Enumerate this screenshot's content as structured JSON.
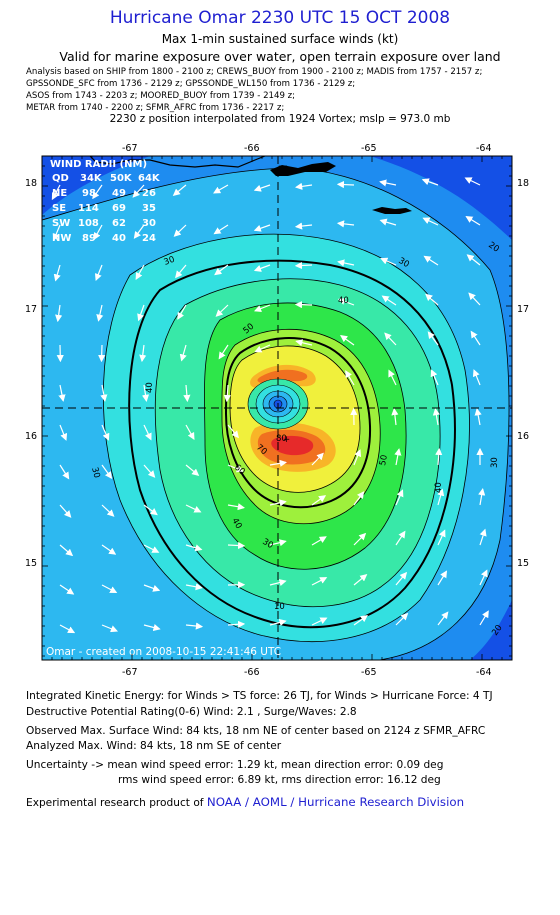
{
  "header": {
    "title": "Hurricane Omar 2230 UTC 15 OCT 2008",
    "subtitle": "Max 1-min sustained surface winds (kt)",
    "validity": "Valid for marine exposure over water, open terrain exposure over land",
    "sources": [
      "Analysis based on   SHIP from 1800 - 2100 z;  CREWS_BUOY from 1900 - 2100 z;  MADIS from 1757 - 2157 z;",
      "GPSSONDE_SFC from 1736 - 2129 z;  GPSSONDE_WL150 from 1736 - 2129 z;",
      "ASOS from 1743 - 2203 z;  MOORED_BUOY from 1739 - 2149 z;",
      "METAR from 1740 - 2200 z;  SFMR_AFRC from 1736 - 2217 z;"
    ],
    "vortex_note": "2230 z position interpolated from 1924 Vortex; mslp = 973.0 mb"
  },
  "map": {
    "lon_ticks": [
      "-67",
      "-66",
      "-65",
      "-64"
    ],
    "lat_ticks": [
      "18",
      "17",
      "16",
      "15"
    ],
    "wind_radii": {
      "title": "WIND RADII (NM)",
      "header": [
        "QD",
        "34K",
        "50K",
        "64K"
      ],
      "rows": [
        [
          "NE",
          "98",
          "49",
          "26"
        ],
        [
          "SE",
          "114",
          "69",
          "35"
        ],
        [
          "SW",
          "108",
          "62",
          "30"
        ],
        [
          "NW",
          "89",
          "40",
          "24"
        ]
      ]
    },
    "contour_labels": [
      "20",
      "20",
      "20",
      "30",
      "30",
      "30",
      "30",
      "30",
      "40",
      "40",
      "40",
      "50",
      "50",
      "60",
      "70",
      "80",
      "10",
      "40"
    ],
    "credit": "Omar - created on 2008-10-15 22:41:46 UTC",
    "colors": {
      "c10": "#1450e6",
      "c20": "#1e8cf0",
      "c30": "#2db8f0",
      "c40": "#33e0e0",
      "c45": "#38e8a8",
      "c50": "#2ee64a",
      "c60": "#9ef03c",
      "c70": "#f0f03c",
      "c80": "#f8b428",
      "c90": "#f07020",
      "c100": "#e62a2a",
      "land": "#000000"
    }
  },
  "footer": {
    "ike": "Integrated Kinetic Energy:  for Winds > TS force: 26 TJ,  for Winds > Hurricane Force: 4 TJ",
    "dpr": "Destructive Potential Rating(0-6)   Wind: 2.1 , Surge/Waves: 2.8",
    "observed": "Observed Max. Surface Wind: 84 kts, 18 nm NE of center based on 2124 z SFMR_AFRC",
    "analyzed": "Analyzed Max. Wind: 84 kts, 18 nm SE of center",
    "uncertainty1": "Uncertainty -> mean wind speed error: 1.29 kt,    mean direction error: 0.09 deg",
    "uncertainty2": "rms wind speed error: 6.89 kt,   rms direction error: 16.12 deg",
    "product_prefix": "Experimental research product of ",
    "product_org": "NOAA / AOML / Hurricane Research Division"
  }
}
